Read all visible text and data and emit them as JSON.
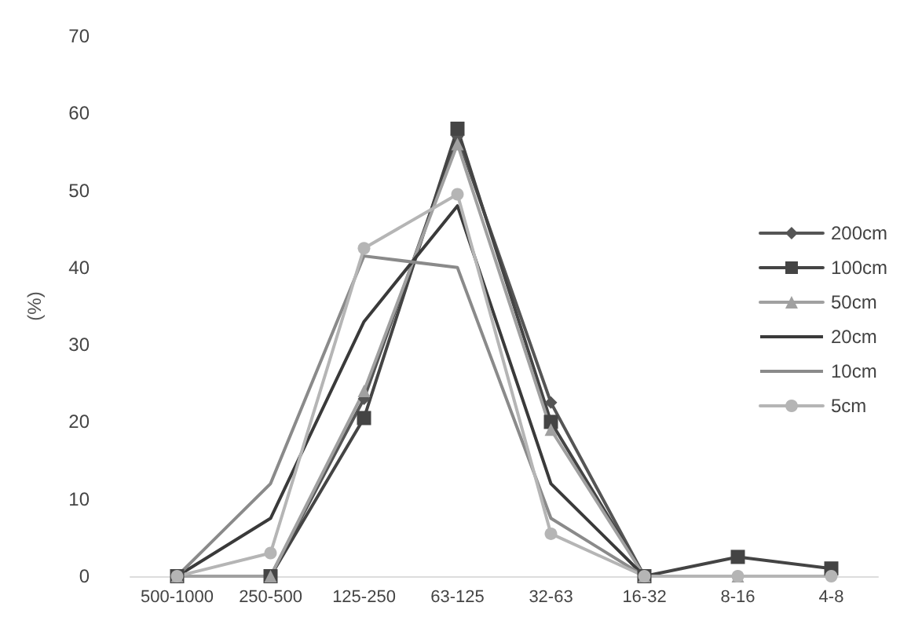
{
  "chart_data": {
    "type": "line",
    "ylabel": "(%)",
    "categories": [
      "500-1000",
      "250-500",
      "125-250",
      "63-125",
      "32-63",
      "16-32",
      "8-16",
      "4-8"
    ],
    "ylim": [
      0,
      70
    ],
    "yticks": [
      0,
      10,
      20,
      30,
      40,
      50,
      60,
      70
    ],
    "grid": false,
    "legend": "right",
    "series": [
      {
        "name": "200cm",
        "color": "#555555",
        "marker": "diamond",
        "values": [
          0,
          0,
          23,
          57,
          22.5,
          0,
          null,
          null
        ]
      },
      {
        "name": "100cm",
        "color": "#444444",
        "marker": "square",
        "values": [
          0,
          0,
          20.5,
          58,
          20,
          0,
          2.5,
          1
        ]
      },
      {
        "name": "50cm",
        "color": "#a0a0a0",
        "marker": "triangle",
        "values": [
          0,
          0,
          24,
          56,
          19,
          0,
          0,
          null
        ]
      },
      {
        "name": "20cm",
        "color": "#3a3a3a",
        "marker": "none",
        "values": [
          0,
          7.5,
          33,
          48,
          12,
          0,
          0,
          0
        ]
      },
      {
        "name": "10cm",
        "color": "#8a8a8a",
        "marker": "none",
        "values": [
          0,
          12,
          41.5,
          40,
          7.5,
          0,
          0,
          0
        ]
      },
      {
        "name": "5cm",
        "color": "#b5b5b5",
        "marker": "circle",
        "values": [
          0,
          3,
          42.5,
          49.5,
          5.5,
          0,
          0,
          0
        ]
      }
    ]
  }
}
